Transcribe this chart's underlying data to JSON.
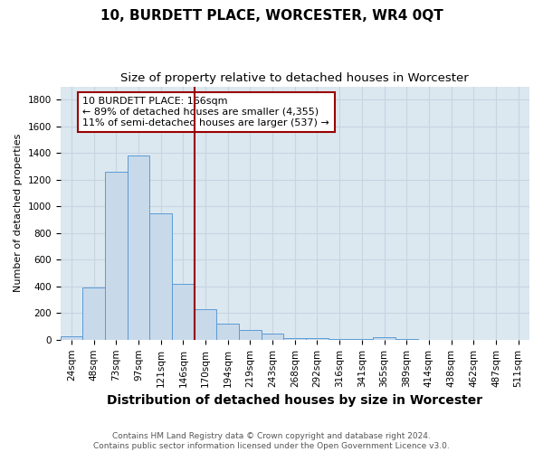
{
  "title": "10, BURDETT PLACE, WORCESTER, WR4 0QT",
  "subtitle": "Size of property relative to detached houses in Worcester",
  "xlabel": "Distribution of detached houses by size in Worcester",
  "ylabel": "Number of detached properties",
  "categories": [
    "24sqm",
    "48sqm",
    "73sqm",
    "97sqm",
    "121sqm",
    "146sqm",
    "170sqm",
    "194sqm",
    "219sqm",
    "243sqm",
    "268sqm",
    "292sqm",
    "316sqm",
    "341sqm",
    "365sqm",
    "389sqm",
    "414sqm",
    "438sqm",
    "462sqm",
    "487sqm",
    "511sqm"
  ],
  "values": [
    25,
    390,
    1260,
    1380,
    950,
    420,
    230,
    120,
    70,
    45,
    15,
    10,
    5,
    5,
    20,
    5,
    0,
    0,
    0,
    0,
    0
  ],
  "bar_color": "#c8d9ea",
  "bar_edge_color": "#5b9bd5",
  "vline_x": 6.0,
  "vline_color": "#990000",
  "annotation_text": "10 BURDETT PLACE: 166sqm\n← 89% of detached houses are smaller (4,355)\n11% of semi-detached houses are larger (537) →",
  "annotation_box_edge": "#990000",
  "ylim": [
    0,
    1900
  ],
  "yticks": [
    0,
    200,
    400,
    600,
    800,
    1000,
    1200,
    1400,
    1600,
    1800
  ],
  "footnote_line1": "Contains HM Land Registry data © Crown copyright and database right 2024.",
  "footnote_line2": "Contains public sector information licensed under the Open Government Licence v3.0.",
  "grid_color": "#c8d4e0",
  "background_color": "#dce8f0",
  "title_fontsize": 11,
  "subtitle_fontsize": 9.5,
  "xlabel_fontsize": 10,
  "ylabel_fontsize": 8,
  "tick_fontsize": 7.5,
  "annotation_fontsize": 8,
  "footnote_fontsize": 6.5
}
